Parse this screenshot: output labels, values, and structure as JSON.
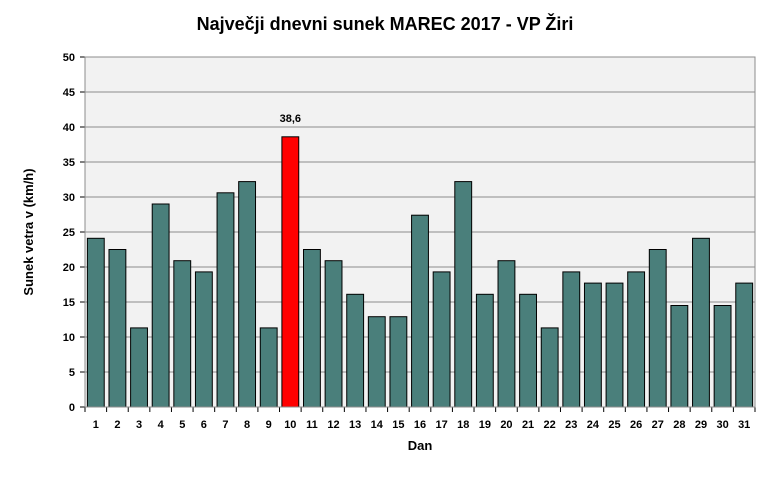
{
  "chart_data": {
    "type": "bar",
    "title": "Največji dnevni sunek MAREC 2017 - VP Žiri",
    "xlabel": "Dan",
    "ylabel": "Sunek vetra v (km/h)",
    "ylim": [
      0,
      50
    ],
    "yticks": [
      "0",
      "5",
      "10",
      "15",
      "20",
      "25",
      "30",
      "35",
      "40",
      "45",
      "50"
    ],
    "grid": true,
    "categories": [
      "1",
      "2",
      "3",
      "4",
      "5",
      "6",
      "7",
      "8",
      "9",
      "10",
      "11",
      "12",
      "13",
      "14",
      "15",
      "16",
      "17",
      "18",
      "19",
      "20",
      "21",
      "22",
      "23",
      "24",
      "25",
      "26",
      "27",
      "28",
      "29",
      "30",
      "31"
    ],
    "values": [
      24.1,
      22.5,
      11.3,
      29.0,
      20.9,
      19.3,
      30.6,
      32.2,
      11.3,
      38.6,
      22.5,
      20.9,
      16.1,
      12.9,
      12.9,
      27.4,
      19.3,
      32.2,
      16.1,
      20.9,
      16.1,
      11.3,
      19.3,
      17.7,
      17.7,
      19.3,
      22.5,
      14.5,
      24.1,
      14.5,
      17.7
    ],
    "highlight_index": 9,
    "highlight_label": "38,6",
    "colors": {
      "bar": "#4a7f7b",
      "highlight": "#ff0000",
      "plot_bg": "#f2f2f2",
      "grid": "#8c8c8c"
    }
  }
}
